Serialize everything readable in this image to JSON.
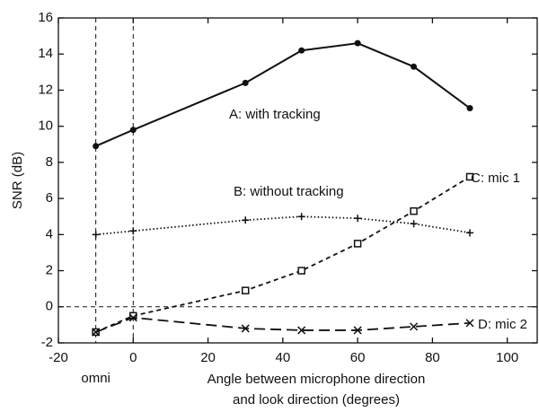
{
  "chart_data": {
    "type": "line",
    "xlabel": [
      "Angle between microphone direction",
      "and look direction (degrees)"
    ],
    "ylabel": "SNR (dB)",
    "x": [
      -10,
      0,
      30,
      45,
      60,
      75,
      90
    ],
    "series": [
      {
        "name": "A: with tracking",
        "color": "#111111",
        "style": "solid",
        "marker": "dot",
        "values": [
          8.9,
          9.8,
          12.4,
          14.2,
          14.6,
          13.3,
          11.0
        ]
      },
      {
        "name": "B: without tracking",
        "color": "#111111",
        "style": "dotted",
        "marker": "plus",
        "values": [
          4.0,
          4.2,
          4.8,
          5.0,
          4.9,
          4.6,
          4.1
        ]
      },
      {
        "name": "C: mic 1",
        "color": "#111111",
        "style": "dashed",
        "marker": "square",
        "values": [
          -1.4,
          -0.5,
          0.9,
          2.0,
          3.5,
          5.3,
          7.2
        ]
      },
      {
        "name": "D: mic 2",
        "color": "#111111",
        "style": "longdash",
        "marker": "x",
        "values": [
          -1.4,
          -0.6,
          -1.2,
          -1.3,
          -1.3,
          -1.1,
          -0.9
        ]
      }
    ],
    "xlim": [
      -20,
      108
    ],
    "ylim": [
      -2,
      16
    ],
    "xticks": [
      -20,
      0,
      20,
      40,
      60,
      80,
      100
    ],
    "yticks": [
      -2,
      0,
      2,
      4,
      6,
      8,
      10,
      12,
      14,
      16
    ],
    "vlines": [
      -10,
      0
    ],
    "hlines": [
      0
    ],
    "annotations": [
      {
        "text": "omni",
        "x": -10
      }
    ]
  }
}
